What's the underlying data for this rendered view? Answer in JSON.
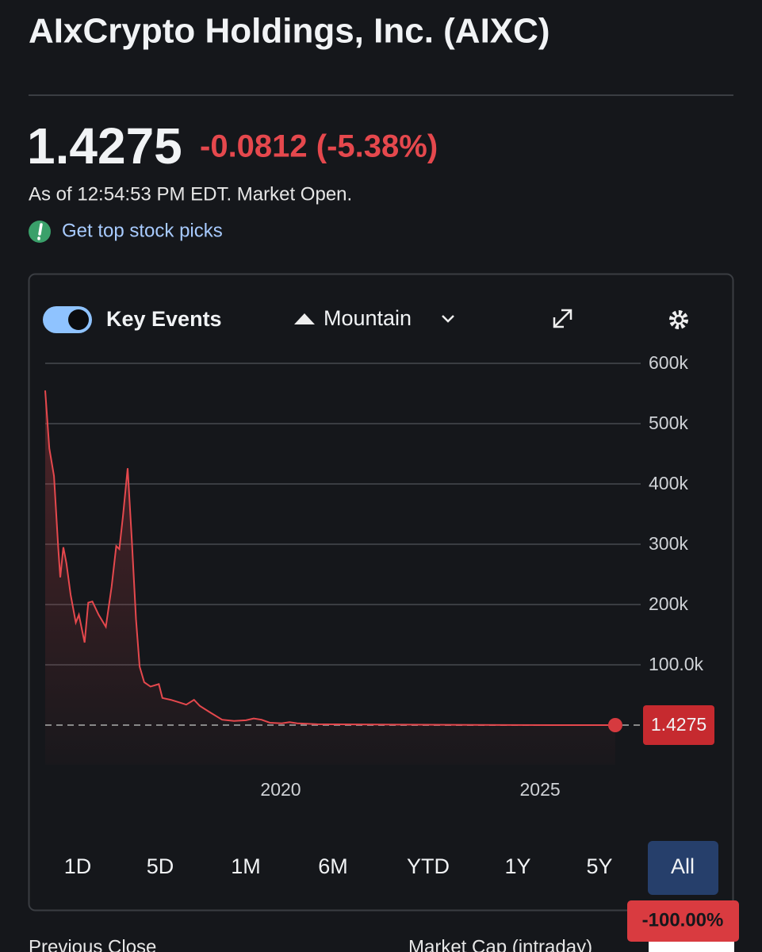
{
  "header": {
    "title": "AIxCrypto Holdings, Inc. (AIXC)",
    "price": "1.4275",
    "change": "-0.0812 (-5.38%)",
    "as_of": "As of 12:54:53 PM EDT. Market Open.",
    "promo": "Get top stock picks"
  },
  "toolbar": {
    "key_events": "Key Events",
    "chart_style": "Mountain"
  },
  "chart_data": {
    "type": "line",
    "color": "#e5484d",
    "x": [
      2015.46,
      2015.54,
      2015.63,
      2015.71,
      2015.75,
      2015.81,
      2015.87,
      2015.95,
      2016.05,
      2016.11,
      2016.22,
      2016.29,
      2016.37,
      2016.49,
      2016.63,
      2016.74,
      2016.83,
      2016.89,
      2016.96,
      2017.05,
      2017.13,
      2017.21,
      2017.28,
      2017.37,
      2017.49,
      2017.65,
      2017.72,
      2017.88,
      2018.03,
      2018.18,
      2018.33,
      2018.44,
      2018.64,
      2018.87,
      2019.1,
      2019.33,
      2019.48,
      2019.63,
      2019.79,
      2020.02,
      2020.17,
      2020.32,
      2020.7,
      2022.23,
      2023.76,
      2025.29,
      2026.45
    ],
    "values": [
      555000,
      459000,
      413000,
      295000,
      245000,
      295000,
      268000,
      216000,
      170000,
      183000,
      137000,
      203000,
      205000,
      183000,
      163000,
      229000,
      297000,
      292000,
      347000,
      426000,
      308000,
      176000,
      97000,
      71000,
      64000,
      68000,
      45000,
      42000,
      38000,
      34000,
      42000,
      32000,
      21000,
      9000,
      7000,
      8000,
      11000,
      9000,
      4000,
      3000,
      5000,
      3000,
      1500,
      800,
      200,
      50,
      1.4275
    ],
    "xlim": [
      2015.46,
      2026.94
    ],
    "xticks": [
      2020,
      2025
    ],
    "ylim": [
      0,
      600000
    ],
    "yticks": [
      {
        "value": 100000,
        "label": "100.0k"
      },
      {
        "value": 200000,
        "label": "200k"
      },
      {
        "value": 300000,
        "label": "300k"
      },
      {
        "value": 400000,
        "label": "400k"
      },
      {
        "value": 500000,
        "label": "500k"
      },
      {
        "value": 600000,
        "label": "600k"
      }
    ],
    "grid": true
  },
  "ranges": {
    "options": [
      "1D",
      "5D",
      "1M",
      "6M",
      "YTD",
      "1Y",
      "5Y",
      "All"
    ],
    "active": "All"
  },
  "performance": "-100.00%",
  "stats": [
    "Previous Close",
    "Market Cap (intraday)"
  ]
}
